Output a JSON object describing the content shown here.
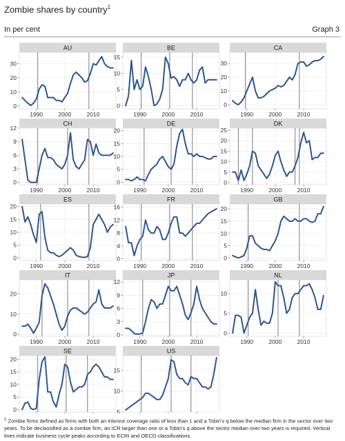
{
  "header": {
    "title": "Zombie shares by country",
    "title_note": "1",
    "subtitle": "In per cent",
    "graph_label": "Graph 3"
  },
  "footnote": {
    "mark": "1",
    "text": "Zombie firms defined as firms with both an interest coverage ratio of less than 1 and a Tobin's q below the median firm in the sector over two years. To be declassified as a zombie firm, an ICR larger than one or a Tobin's q above the sector median over two years is required. Vertical lines indicate business cycle peaks according to ECRI and OECD classifications."
  },
  "colors": {
    "line": "#2b5592",
    "strip": "#d9d9d9",
    "grid": "#ececec",
    "vline": "#6e6e6e"
  },
  "chart_data": {
    "type": "line",
    "facet": "small-multiples",
    "x_ticks": [
      1990,
      2000,
      2010
    ],
    "xlim": [
      1984,
      2018
    ],
    "panels": [
      {
        "name": "AU",
        "ylim": [
          -2,
          38
        ],
        "yticks": [
          0,
          10,
          20,
          30
        ],
        "peaks": [
          1990.5,
          2008.5
        ],
        "x": [
          1985,
          1986,
          1987,
          1988,
          1989,
          1990,
          1991,
          1992,
          1993,
          1994,
          1995,
          1996,
          1997,
          1998,
          1999,
          2000,
          2001,
          2002,
          2003,
          2004,
          2005,
          2006,
          2007,
          2008,
          2009,
          2010,
          2011,
          2012,
          2013,
          2014,
          2015,
          2016,
          2017
        ],
        "y": [
          6,
          4,
          2,
          0.5,
          2,
          5,
          12,
          15,
          14,
          6,
          6,
          6,
          4,
          4,
          3,
          6,
          9,
          16,
          22,
          24,
          22,
          20,
          17,
          18,
          23,
          30,
          29,
          32,
          35,
          30,
          28,
          27,
          27
        ]
      },
      {
        "name": "BE",
        "ylim": [
          -1,
          16.5
        ],
        "yticks": [
          0,
          5,
          10,
          15
        ],
        "peaks": [
          1990.5,
          2000.5,
          2008.5
        ],
        "x": [
          1985,
          1986,
          1987,
          1988,
          1989,
          1990,
          1991,
          1992,
          1993,
          1994,
          1995,
          1996,
          1997,
          1998,
          1999,
          2000,
          2001,
          2002,
          2003,
          2004,
          2005,
          2006,
          2007,
          2008,
          2009,
          2010,
          2011,
          2012,
          2013,
          2014,
          2015,
          2016,
          2017
        ],
        "y": [
          0,
          3,
          14,
          5,
          8,
          5,
          6,
          12,
          9,
          5,
          0,
          0.5,
          2,
          5,
          15,
          13,
          8.5,
          9,
          8,
          6,
          8,
          8,
          10,
          8,
          7,
          8,
          11,
          12,
          7,
          8,
          8,
          8,
          8
        ]
      },
      {
        "name": "CA",
        "ylim": [
          -3,
          38
        ],
        "yticks": [
          0,
          10,
          20,
          30
        ],
        "peaks": [
          1989.5,
          2008.5
        ],
        "x": [
          1985,
          1986,
          1987,
          1988,
          1989,
          1990,
          1991,
          1992,
          1993,
          1994,
          1995,
          1996,
          1997,
          1998,
          1999,
          2000,
          2001,
          2002,
          2003,
          2004,
          2005,
          2006,
          2007,
          2008,
          2009,
          2010,
          2011,
          2012,
          2013,
          2014,
          2015,
          2016,
          2017
        ],
        "y": [
          3,
          1,
          0,
          2,
          5,
          10,
          15,
          20,
          10,
          5,
          5,
          6,
          8,
          10,
          11,
          12,
          14,
          13,
          14,
          17,
          20,
          18,
          22,
          30,
          31,
          31,
          28,
          29,
          31,
          32,
          32,
          33,
          35
        ]
      },
      {
        "name": "CH",
        "ylim": [
          -0.5,
          12
        ],
        "yticks": [
          0,
          3,
          6,
          9,
          12
        ],
        "peaks": [
          1990.5,
          2001,
          2008.5
        ],
        "x": [
          1985,
          1986,
          1987,
          1988,
          1989,
          1990,
          1991,
          1992,
          1993,
          1994,
          1995,
          1996,
          1997,
          1998,
          1999,
          2000,
          2001,
          2002,
          2003,
          2004,
          2005,
          2006,
          2007,
          2008,
          2009,
          2010,
          2011,
          2012,
          2013,
          2014,
          2015,
          2016,
          2017
        ],
        "y": [
          9.5,
          5,
          0.5,
          0,
          0,
          0,
          3,
          6,
          7.5,
          5.5,
          5.5,
          5,
          4,
          3.5,
          3,
          4,
          6,
          11,
          5,
          3.5,
          3,
          4,
          5,
          9.5,
          9,
          6,
          8.5,
          6.5,
          6,
          6,
          6,
          6,
          6.5
        ]
      },
      {
        "name": "DE",
        "ylim": [
          -1,
          21
        ],
        "yticks": [
          0,
          5,
          10,
          15,
          20
        ],
        "peaks": [
          1991.5,
          2001,
          2008.5
        ],
        "x": [
          1985,
          1986,
          1987,
          1988,
          1989,
          1990,
          1991,
          1992,
          1993,
          1994,
          1995,
          1996,
          1997,
          1998,
          1999,
          2000,
          2001,
          2002,
          2003,
          2004,
          2005,
          2006,
          2007,
          2008,
          2009,
          2010,
          2011,
          2012,
          2013,
          2014,
          2015,
          2016,
          2017
        ],
        "y": [
          1,
          1,
          0.5,
          1,
          2,
          1,
          1,
          0.5,
          3,
          5,
          6,
          7,
          9,
          10,
          8,
          6,
          5,
          7,
          14,
          19,
          20.5,
          15,
          11,
          11,
          10,
          11,
          10,
          10,
          9.5,
          9,
          9,
          10,
          10
        ]
      },
      {
        "name": "DK",
        "ylim": [
          -1,
          26
        ],
        "yticks": [
          0,
          5,
          10,
          15,
          20,
          25
        ],
        "peaks": [
          1987,
          1992,
          2007,
          2008.5
        ],
        "x": [
          1985,
          1986,
          1987,
          1988,
          1989,
          1990,
          1991,
          1992,
          1993,
          1994,
          1995,
          1996,
          1997,
          1998,
          1999,
          2000,
          2001,
          2002,
          2003,
          2004,
          2005,
          2006,
          2007,
          2008,
          2009,
          2010,
          2011,
          2012,
          2013,
          2014,
          2015,
          2016,
          2017
        ],
        "y": [
          5,
          5,
          1,
          6,
          1,
          4,
          8,
          15,
          14,
          8,
          6,
          4,
          2,
          4,
          8,
          13,
          15,
          10,
          6,
          3,
          5,
          5,
          8,
          12,
          19,
          24,
          19,
          20,
          11,
          12,
          12,
          14,
          14
        ]
      },
      {
        "name": "ES",
        "ylim": [
          -1,
          21
        ],
        "yticks": [
          0,
          5,
          10,
          15,
          20
        ],
        "peaks": [
          1991.5,
          2008.5
        ],
        "x": [
          1985,
          1986,
          1987,
          1988,
          1989,
          1990,
          1991,
          1992,
          1993,
          1994,
          1995,
          1996,
          1997,
          1998,
          1999,
          2000,
          2001,
          2002,
          2003,
          2004,
          2005,
          2006,
          2007,
          2008,
          2009,
          2010,
          2011,
          2012,
          2013,
          2014,
          2015,
          2016,
          2017
        ],
        "y": [
          20,
          14,
          16,
          13,
          9,
          6,
          17,
          18,
          8,
          3,
          2,
          2,
          1,
          0.5,
          1,
          2,
          3,
          4,
          3,
          1,
          0.5,
          0.3,
          0.2,
          0.5,
          4,
          13,
          15,
          17,
          15,
          13,
          10,
          12,
          13
        ]
      },
      {
        "name": "FR",
        "ylim": [
          -0.5,
          17
        ],
        "yticks": [
          0,
          4,
          8,
          12,
          16
        ],
        "peaks": [
          1990.5,
          2000.5,
          2008.5
        ],
        "x": [
          1985,
          1986,
          1987,
          1988,
          1989,
          1990,
          1991,
          1992,
          1993,
          1994,
          1995,
          1996,
          1997,
          1998,
          1999,
          2000,
          2001,
          2002,
          2003,
          2004,
          2005,
          2006,
          2007,
          2008,
          2009,
          2010,
          2011,
          2012,
          2013,
          2014,
          2015,
          2016,
          2017
        ],
        "y": [
          10,
          5,
          5,
          1,
          4,
          6,
          7,
          12,
          9,
          8,
          8,
          10,
          9,
          6,
          6,
          8,
          11,
          13,
          13,
          8,
          8,
          7,
          8,
          9,
          10,
          11,
          11,
          12,
          13,
          14,
          14.5,
          15,
          15.5
        ]
      },
      {
        "name": "GB",
        "ylim": [
          -1,
          22
        ],
        "yticks": [
          0,
          5,
          10,
          15,
          20
        ],
        "peaks": [
          1990.5,
          2008.5
        ],
        "x": [
          1985,
          1986,
          1987,
          1988,
          1989,
          1990,
          1991,
          1992,
          1993,
          1994,
          1995,
          1996,
          1997,
          1998,
          1999,
          2000,
          2001,
          2002,
          2003,
          2004,
          2005,
          2006,
          2007,
          2008,
          2009,
          2010,
          2011,
          2012,
          2013,
          2014,
          2015,
          2016,
          2017
        ],
        "y": [
          1,
          0.5,
          0,
          0.5,
          1,
          4,
          9,
          9,
          6,
          5,
          4,
          3.5,
          3.5,
          3,
          5,
          7,
          10,
          15,
          17,
          16,
          15,
          15,
          16,
          15,
          15,
          16,
          16,
          15,
          14.5,
          15,
          18,
          18,
          21
        ]
      },
      {
        "name": "IT",
        "ylim": [
          -1,
          27
        ],
        "yticks": [
          0,
          10,
          20
        ],
        "peaks": [
          1992,
          2001,
          2008.5
        ],
        "x": [
          1985,
          1986,
          1987,
          1988,
          1989,
          1990,
          1991,
          1992,
          1993,
          1994,
          1995,
          1996,
          1997,
          1998,
          1999,
          2000,
          2001,
          2002,
          2003,
          2004,
          2005,
          2006,
          2007,
          2008,
          2009,
          2010,
          2011,
          2012,
          2013,
          2014,
          2015,
          2016,
          2017
        ],
        "y": [
          4,
          4,
          5,
          3,
          0.5,
          3,
          6,
          19,
          25,
          23,
          19,
          15,
          10,
          5,
          2,
          4,
          9,
          12,
          13,
          13,
          12,
          11,
          10,
          11,
          13,
          15,
          16,
          22,
          15,
          13,
          13,
          13,
          14
        ]
      },
      {
        "name": "JP",
        "ylim": [
          -0.3,
          12.5
        ],
        "yticks": [
          0,
          3,
          6,
          9,
          12
        ],
        "peaks": [
          1991,
          2000.5,
          2008
        ],
        "x": [
          1985,
          1986,
          1987,
          1988,
          1989,
          1990,
          1991,
          1992,
          1993,
          1994,
          1995,
          1996,
          1997,
          1998,
          1999,
          2000,
          2001,
          2002,
          2003,
          2004,
          2005,
          2006,
          2007,
          2008,
          2009,
          2010,
          2011,
          2012,
          2013,
          2014,
          2015,
          2016,
          2017
        ],
        "y": [
          1.5,
          1.5,
          1,
          0.3,
          0.2,
          0.2,
          0.5,
          3,
          6,
          8,
          7.5,
          6,
          7,
          7,
          9,
          11,
          10,
          10,
          11,
          9,
          7,
          4.5,
          3.5,
          5,
          7,
          11,
          8,
          6,
          5,
          4,
          3,
          2.5,
          2.5
        ]
      },
      {
        "name": "NL",
        "ylim": [
          -0.8,
          13.5
        ],
        "yticks": [
          0,
          5,
          10
        ],
        "peaks": [
          1990.5,
          2001,
          2008.5
        ],
        "x": [
          1985,
          1986,
          1987,
          1988,
          1989,
          1990,
          1991,
          1992,
          1993,
          1994,
          1995,
          1996,
          1997,
          1998,
          1999,
          2000,
          2001,
          2002,
          2003,
          2004,
          2005,
          2006,
          2007,
          2008,
          2009,
          2010,
          2011,
          2012,
          2013,
          2014,
          2015,
          2016,
          2017
        ],
        "y": [
          0,
          4.5,
          4.5,
          4,
          0,
          2,
          4,
          5,
          11,
          6,
          2,
          3,
          2.5,
          2.5,
          5,
          13,
          12,
          12,
          9,
          5,
          6,
          9,
          10,
          10,
          11,
          12,
          12,
          12.5,
          11,
          9,
          6,
          6,
          9.5
        ]
      },
      {
        "name": "SE",
        "ylim": [
          -1,
          21.5
        ],
        "yticks": [
          0,
          5,
          10,
          15,
          20
        ],
        "peaks": [
          1990.5,
          2000.5,
          2008
        ],
        "x": [
          1985,
          1986,
          1987,
          1988,
          1989,
          1990,
          1991,
          1992,
          1993,
          1994,
          1995,
          1996,
          1997,
          1998,
          1999,
          2000,
          2001,
          2002,
          2003,
          2004,
          2005,
          2006,
          2007,
          2008,
          2009,
          2010,
          2011,
          2012,
          2013,
          2014,
          2015,
          2016,
          2017
        ],
        "y": [
          0,
          2.5,
          3,
          0.5,
          0,
          0.5,
          12,
          19,
          21,
          7,
          7,
          3,
          1,
          6,
          10,
          18,
          17,
          11,
          7,
          8,
          9,
          9,
          10,
          14,
          15,
          17,
          18,
          17,
          15,
          13,
          13,
          12,
          12
        ]
      },
      {
        "name": "US",
        "ylim": [
          5,
          18.5
        ],
        "yticks": [
          5,
          10,
          15
        ],
        "peaks": [
          1990.5,
          2001,
          2008
        ],
        "x": [
          1985,
          1986,
          1987,
          1988,
          1989,
          1990,
          1991,
          1992,
          1993,
          1994,
          1995,
          1996,
          1997,
          1998,
          1999,
          2000,
          2001,
          2002,
          2003,
          2004,
          2005,
          2006,
          2007,
          2008,
          2009,
          2010,
          2011,
          2012,
          2013,
          2014,
          2015,
          2016,
          2017
        ],
        "y": [
          5.5,
          6,
          6.5,
          7,
          7.5,
          8,
          8.5,
          9.5,
          9.5,
          9,
          8.5,
          8,
          8,
          9,
          11,
          13,
          17.5,
          17,
          14,
          13,
          13,
          12,
          11.5,
          13.5,
          13,
          13,
          12,
          11,
          11,
          10.5,
          11,
          14,
          18
        ]
      }
    ]
  }
}
